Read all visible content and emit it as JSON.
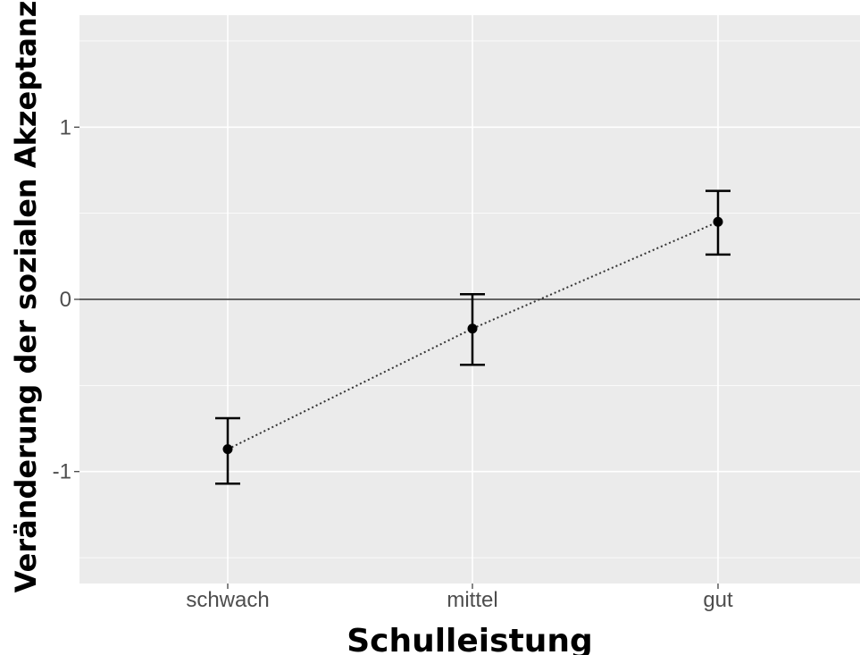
{
  "chart_data": {
    "type": "scatter",
    "title": "",
    "xlabel": "Schulleistung",
    "ylabel": "Veränderung der sozialen Akzeptanz",
    "categories": [
      "schwach",
      "mittel",
      "gut"
    ],
    "values": [
      -0.87,
      -0.17,
      0.45
    ],
    "error_bars": {
      "lower": [
        -1.07,
        -0.38,
        0.26
      ],
      "upper": [
        -0.69,
        0.03,
        0.63
      ]
    },
    "ylim": [
      -1.65,
      1.65
    ],
    "yticks": [
      -1,
      0,
      1
    ],
    "ytick_labels": [
      "-1",
      "0",
      "1"
    ],
    "reference_line_y": 0,
    "connector_style": "dotted",
    "grid": true,
    "legend": "none",
    "colors": {
      "panel_background": "#ebebeb",
      "grid": "#ffffff",
      "marks": "#000000",
      "tick_text": "#4d4d4d"
    }
  }
}
